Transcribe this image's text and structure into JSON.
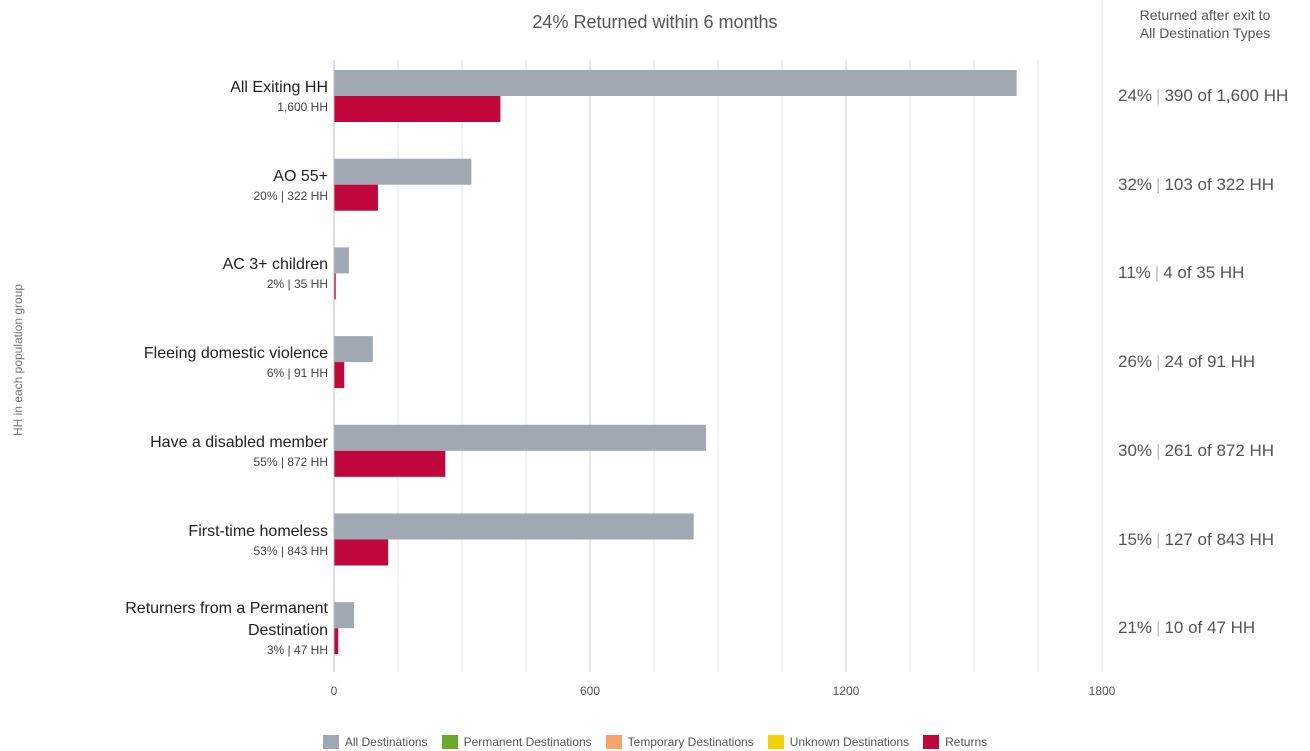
{
  "chart_data": {
    "type": "bar",
    "orientation": "horizontal",
    "title": "24% Returned within 6 months",
    "right_header": [
      "Returned after exit to",
      "All Destination Types"
    ],
    "y_label": "HH in each population group",
    "categories": [
      "All Exiting HH",
      "AO 55+",
      "AC 3+ children",
      "Fleeing domestic violence",
      "Have a disabled member",
      "First-time homeless",
      "Returners from a Permanent Destination"
    ],
    "sublabels": [
      "1,600 HH",
      "20% | 322 HH",
      "2% | 35 HH",
      "6% | 91 HH",
      "55% | 872 HH",
      "53% | 843 HH",
      "3% | 47 HH"
    ],
    "right_label_separator": "|",
    "right_labels": [
      [
        "24%",
        "390 of 1,600 HH"
      ],
      [
        "32%",
        "103 of 322 HH"
      ],
      [
        "11%",
        "4 of 35 HH"
      ],
      [
        "26%",
        "24 of 91 HH"
      ],
      [
        "30%",
        "261 of 872 HH"
      ],
      [
        "15%",
        "127 of 843 HH"
      ],
      [
        "21%",
        "10 of 47 HH"
      ]
    ],
    "series": [
      {
        "name": "All Destinations",
        "color": "#a0a8b3",
        "values": [
          1600,
          322,
          35,
          91,
          872,
          843,
          47
        ]
      },
      {
        "name": "Permanent Destinations",
        "color": "#6aaa2a",
        "values": [
          null,
          null,
          null,
          null,
          null,
          null,
          null
        ]
      },
      {
        "name": "Temporary Destinations",
        "color": "#f4a46a",
        "values": [
          null,
          null,
          null,
          null,
          null,
          null,
          null
        ]
      },
      {
        "name": "Unknown Destinations",
        "color": "#f5d000",
        "values": [
          null,
          null,
          null,
          null,
          null,
          null,
          null
        ]
      },
      {
        "name": "Returns",
        "color": "#c0063a",
        "values": [
          390,
          103,
          4,
          24,
          261,
          127,
          10
        ]
      }
    ],
    "xlim": [
      0,
      1800
    ],
    "xticks": [
      0,
      600,
      1200,
      1800
    ],
    "minor_xticks": [
      150,
      300,
      450,
      750,
      900,
      1050,
      1350,
      1500,
      1650
    ],
    "grid": true,
    "legend": "bottom"
  }
}
